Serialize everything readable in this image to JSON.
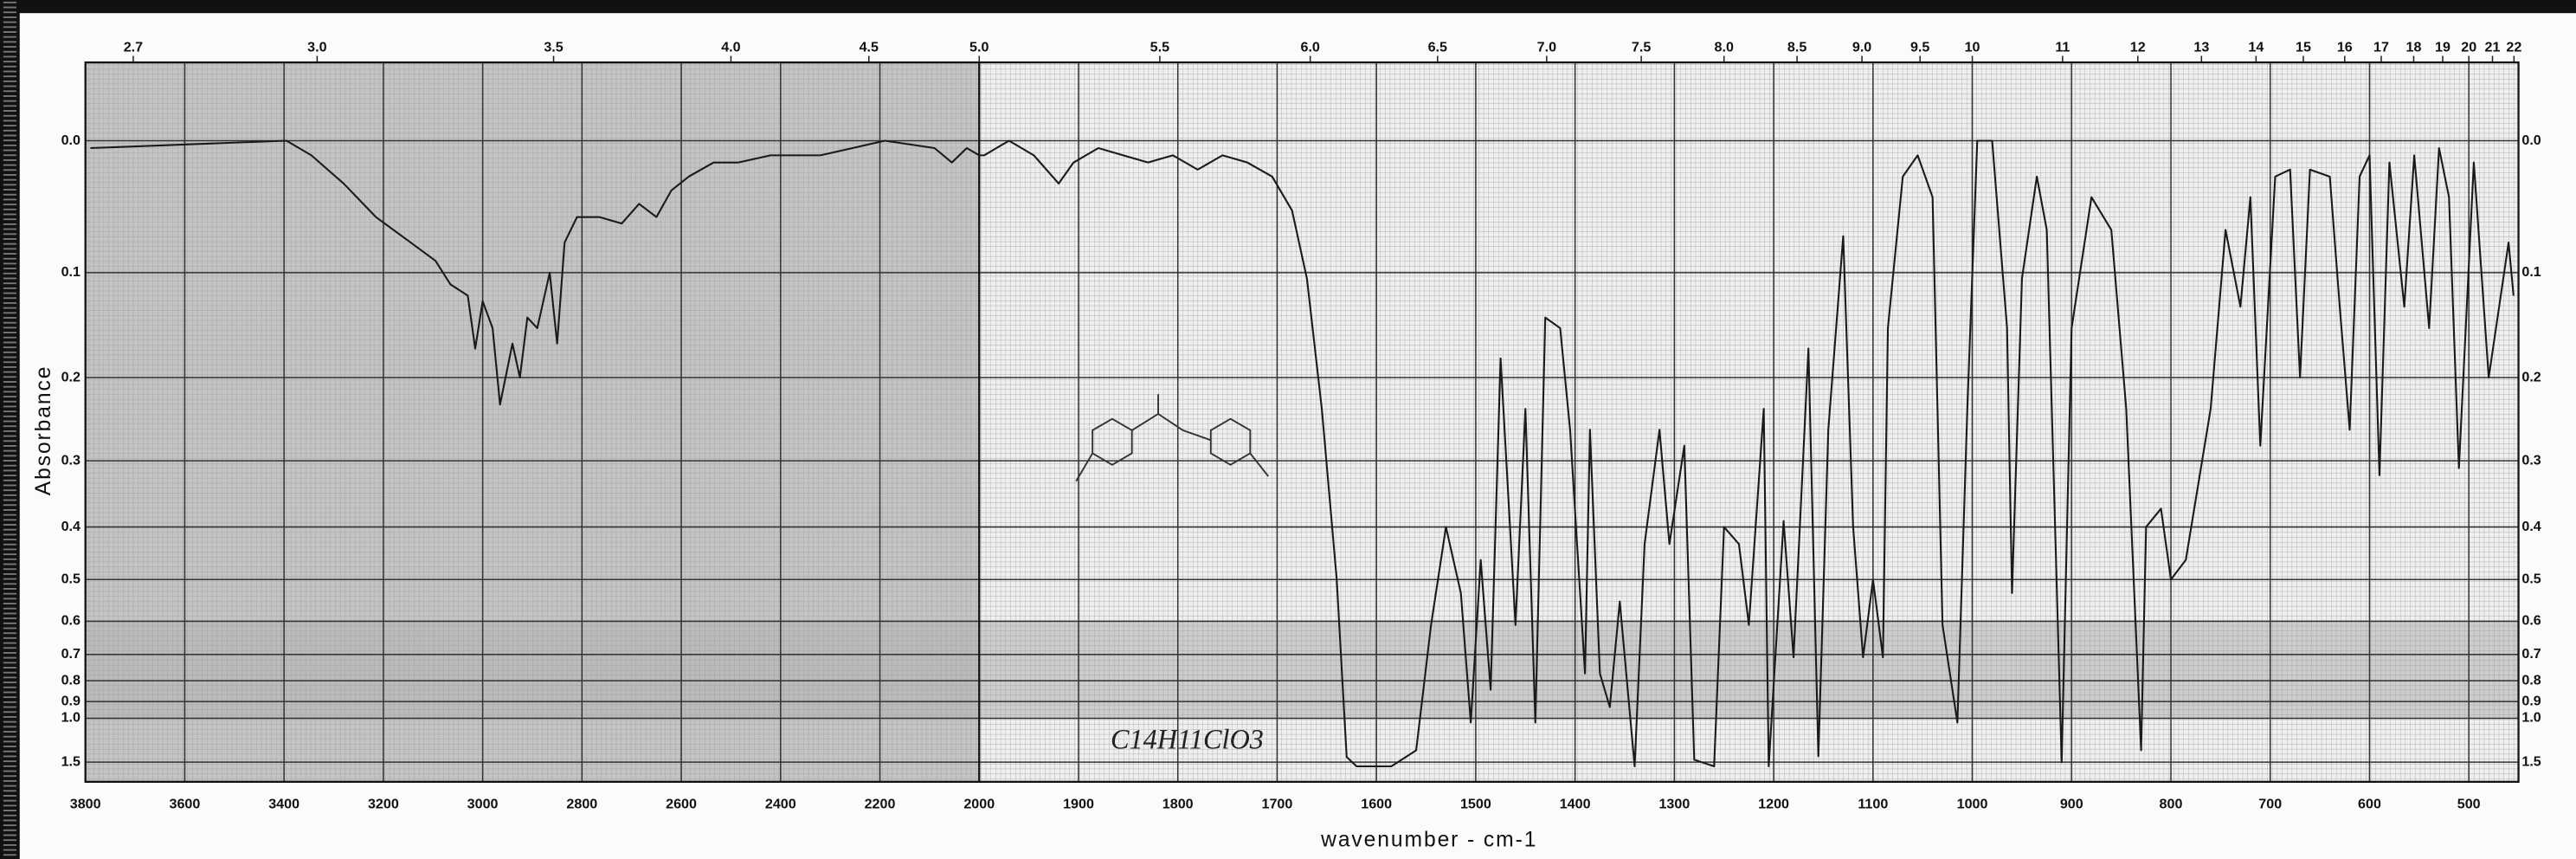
{
  "chart_data": {
    "type": "line",
    "ylabel": "Absorbance",
    "xlabel": "wavenumber - cm-1",
    "annotation": "C14H11ClO3",
    "color": "#1a1a1a",
    "grid": true,
    "xlim": [
      3800,
      450
    ],
    "xbreak": 2000,
    "ylim": [
      -0.05,
      3
    ],
    "yscale": "transmittance",
    "xticks": [
      3800,
      3600,
      3400,
      3200,
      3000,
      2800,
      2600,
      2400,
      2200,
      2000,
      1900,
      1800,
      1700,
      1600,
      1500,
      1400,
      1300,
      1200,
      1100,
      1000,
      900,
      800,
      700,
      600,
      500
    ],
    "xticks_top": [
      2.7,
      {
        "value": 3,
        "label": "3.0"
      },
      3.5,
      {
        "value": 4,
        "label": "4.0"
      },
      4.5,
      {
        "value": 5,
        "label": "5.0"
      },
      5.5,
      {
        "value": 6,
        "label": "6.0"
      },
      6.5,
      {
        "value": 7,
        "label": "7.0"
      },
      7.5,
      {
        "value": 8,
        "label": "8.0"
      },
      8.5,
      {
        "value": 9,
        "label": "9.0"
      },
      9.5,
      10,
      11,
      12,
      13,
      14,
      15,
      16,
      17,
      18,
      19,
      20,
      21,
      22
    ],
    "yticks": [
      {
        "value": 0,
        "label": "0.0"
      },
      0.1,
      0.2,
      0.3,
      0.4,
      0.5,
      0.6,
      0.7,
      0.8,
      0.9,
      {
        "value": 1,
        "label": "1.0"
      },
      1.5
    ],
    "x": [
      3790,
      3395,
      3345,
      3280,
      3215,
      3145,
      3095,
      3065,
      3030,
      3015,
      3000,
      2980,
      2965,
      2940,
      2925,
      2910,
      2890,
      2865,
      2850,
      2835,
      2810,
      2765,
      2720,
      2685,
      2650,
      2620,
      2585,
      2535,
      2485,
      2420,
      2320,
      2255,
      2190,
      2090,
      2055,
      2025,
      2000,
      1995,
      1970,
      1945,
      1920,
      1905,
      1880,
      1855,
      1830,
      1805,
      1780,
      1755,
      1730,
      1705,
      1685,
      1670,
      1655,
      1640,
      1630,
      1620,
      1585,
      1560,
      1545,
      1530,
      1515,
      1505,
      1495,
      1485,
      1475,
      1460,
      1450,
      1440,
      1430,
      1415,
      1405,
      1390,
      1385,
      1375,
      1365,
      1355,
      1340,
      1330,
      1315,
      1305,
      1290,
      1280,
      1260,
      1250,
      1235,
      1225,
      1210,
      1205,
      1190,
      1180,
      1165,
      1155,
      1145,
      1130,
      1120,
      1110,
      1100,
      1090,
      1085,
      1070,
      1055,
      1040,
      1030,
      1015,
      1005,
      995,
      980,
      965,
      960,
      950,
      935,
      925,
      910,
      900,
      880,
      860,
      845,
      830,
      825,
      810,
      800,
      785,
      760,
      745,
      730,
      720,
      710,
      695,
      680,
      670,
      660,
      640,
      630,
      620,
      610,
      600,
      590,
      580,
      565,
      555,
      540,
      530,
      520,
      510,
      495,
      480,
      460,
      455
    ],
    "values": [
      0.005,
      0,
      0.01,
      0.03,
      0.055,
      0.075,
      0.09,
      0.11,
      0.12,
      0.17,
      0.125,
      0.15,
      0.23,
      0.165,
      0.2,
      0.14,
      0.15,
      0.1,
      0.165,
      0.075,
      0.055,
      0.055,
      0.06,
      0.045,
      0.055,
      0.035,
      0.025,
      0.015,
      0.015,
      0.01,
      0.01,
      0.005,
      0,
      0.005,
      0.015,
      0.005,
      0.01,
      0.01,
      0,
      0.01,
      0.03,
      0.015,
      0.005,
      0.01,
      0.015,
      0.01,
      0.02,
      0.01,
      0.015,
      0.025,
      0.05,
      0.105,
      0.235,
      0.5,
      1.4,
      1.6,
      1.6,
      1.3,
      0.61,
      0.4,
      0.53,
      1.03,
      0.46,
      0.84,
      0.18,
      0.61,
      0.235,
      1.03,
      0.14,
      0.15,
      0.26,
      0.77,
      0.26,
      0.77,
      0.93,
      0.55,
      1.6,
      0.43,
      0.26,
      0.43,
      0.28,
      1.45,
      1.6,
      0.4,
      0.43,
      0.61,
      0.235,
      1.6,
      0.39,
      0.71,
      0.17,
      1.39,
      0.26,
      0.07,
      0.4,
      0.71,
      0.5,
      0.71,
      0.15,
      0.025,
      0.01,
      0.04,
      0.61,
      1.03,
      0.235,
      0,
      0,
      0.15,
      0.53,
      0.105,
      0.025,
      0.065,
      1.5,
      0.15,
      0.04,
      0.065,
      0.235,
      1.3,
      0.4,
      0.37,
      0.5,
      0.46,
      0.235,
      0.065,
      0.13,
      0.04,
      0.28,
      0.025,
      0.02,
      0.2,
      0.02,
      0.025,
      0.13,
      0.26,
      0.025,
      0.01,
      0.32,
      0.015,
      0.13,
      0.01,
      0.15,
      0.005,
      0.04,
      0.31,
      0.015,
      0.2,
      0.075,
      0.12
    ]
  }
}
